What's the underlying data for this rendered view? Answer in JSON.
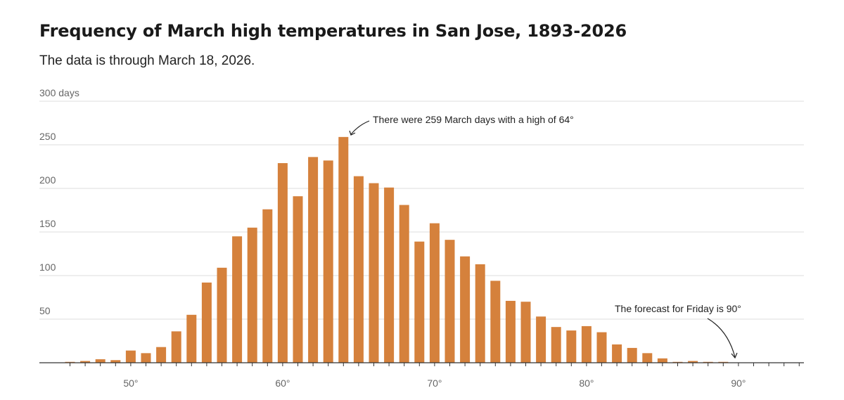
{
  "header": {
    "title": "Frequency of March high temperatures in San Jose, 1893-2026",
    "subtitle": "The data is through March 18, 2026."
  },
  "colors": {
    "bar": "#d5813c",
    "grid": "#dddddd",
    "axis": "#333333",
    "text": "#666666"
  },
  "chart_data": {
    "type": "bar",
    "title": "Frequency of March high temperatures in San Jose, 1893-2026",
    "xlabel": "",
    "ylabel": "days",
    "ylim": [
      0,
      300
    ],
    "yticks": [
      {
        "value": 50,
        "label": "50"
      },
      {
        "value": 100,
        "label": "100"
      },
      {
        "value": 150,
        "label": "150"
      },
      {
        "value": 200,
        "label": "200"
      },
      {
        "value": 250,
        "label": "250"
      },
      {
        "value": 300,
        "label": "300 days"
      }
    ],
    "xticks": [
      {
        "value": 50,
        "label": "50°"
      },
      {
        "value": 60,
        "label": "60°"
      },
      {
        "value": 70,
        "label": "70°"
      },
      {
        "value": 80,
        "label": "80°"
      },
      {
        "value": 90,
        "label": "90°"
      }
    ],
    "categories": [
      46,
      47,
      48,
      49,
      50,
      51,
      52,
      53,
      54,
      55,
      56,
      57,
      58,
      59,
      60,
      61,
      62,
      63,
      64,
      65,
      66,
      67,
      68,
      69,
      70,
      71,
      72,
      73,
      74,
      75,
      76,
      77,
      78,
      79,
      80,
      81,
      82,
      83,
      84,
      85,
      86,
      87,
      88,
      89,
      90,
      91,
      92,
      93,
      94
    ],
    "values": [
      1,
      2,
      4,
      3,
      14,
      11,
      18,
      36,
      55,
      92,
      109,
      145,
      155,
      176,
      229,
      191,
      236,
      232,
      259,
      214,
      206,
      201,
      181,
      139,
      160,
      141,
      122,
      113,
      94,
      71,
      70,
      53,
      41,
      37,
      42,
      35,
      21,
      17,
      11,
      5,
      1,
      2,
      1,
      1,
      0,
      0,
      0,
      0,
      0
    ],
    "annotations": [
      {
        "text": "There were 259 March days with a high of 64°",
        "x": 64,
        "y": 259
      },
      {
        "text": "The forecast for Friday is 90°",
        "x": 90,
        "y": 0
      }
    ]
  }
}
